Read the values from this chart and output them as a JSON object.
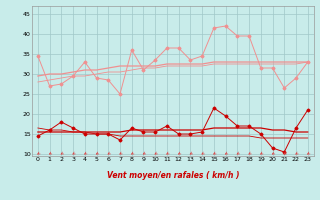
{
  "bg_color": "#c8ecea",
  "grid_color": "#a0c8c8",
  "xlabel": "Vent moyen/en rafales ( km/h )",
  "xlim": [
    -0.5,
    23.5
  ],
  "ylim": [
    9.5,
    47
  ],
  "yticks": [
    10,
    15,
    20,
    25,
    30,
    35,
    40,
    45
  ],
  "xticks": [
    0,
    1,
    2,
    3,
    4,
    5,
    6,
    7,
    8,
    9,
    10,
    11,
    12,
    13,
    14,
    15,
    16,
    17,
    18,
    19,
    20,
    21,
    22,
    23
  ],
  "rafales": [
    34.5,
    27.0,
    27.5,
    29.5,
    33.0,
    29.0,
    28.5,
    25.0,
    36.0,
    31.0,
    33.5,
    36.5,
    36.5,
    33.5,
    34.5,
    41.5,
    42.0,
    39.5,
    39.5,
    31.5,
    31.5,
    26.5,
    29.0,
    33.0
  ],
  "moyen": [
    14.5,
    16.0,
    18.0,
    16.5,
    15.0,
    15.0,
    15.0,
    13.5,
    16.5,
    15.5,
    15.5,
    17.0,
    15.0,
    15.0,
    15.5,
    21.5,
    19.5,
    17.0,
    17.0,
    15.0,
    11.5,
    10.5,
    16.5,
    21.0
  ],
  "trend_r1": [
    29.5,
    30.0,
    30.0,
    30.5,
    31.0,
    31.0,
    31.5,
    32.0,
    32.0,
    32.0,
    32.0,
    32.5,
    32.5,
    32.5,
    32.5,
    33.0,
    33.0,
    33.0,
    33.0,
    33.0,
    33.0,
    33.0,
    33.0,
    33.0
  ],
  "trend_r2": [
    28.0,
    28.5,
    29.0,
    29.5,
    29.5,
    30.0,
    30.5,
    30.5,
    31.0,
    31.5,
    31.5,
    32.0,
    32.0,
    32.0,
    32.0,
    32.5,
    32.5,
    32.5,
    32.5,
    32.5,
    32.5,
    32.5,
    32.5,
    33.0
  ],
  "trend_m1": [
    15.5,
    15.5,
    15.5,
    15.5,
    15.5,
    15.5,
    15.5,
    15.5,
    16.0,
    16.0,
    16.0,
    16.0,
    16.0,
    16.0,
    16.0,
    16.5,
    16.5,
    16.5,
    16.5,
    16.5,
    16.0,
    16.0,
    15.5,
    15.5
  ],
  "trend_m2": [
    16.5,
    16.0,
    16.0,
    15.5,
    15.5,
    15.0,
    15.0,
    14.5,
    14.5,
    14.5,
    14.5,
    14.5,
    14.5,
    14.5,
    14.5,
    14.5,
    14.5,
    14.5,
    14.5,
    14.0,
    14.0,
    14.0,
    14.0,
    14.0
  ],
  "light_pink": "#f09090",
  "dark_red": "#cc0000",
  "xlabel_color": "#cc0000",
  "arrow_color": "#dd4444"
}
